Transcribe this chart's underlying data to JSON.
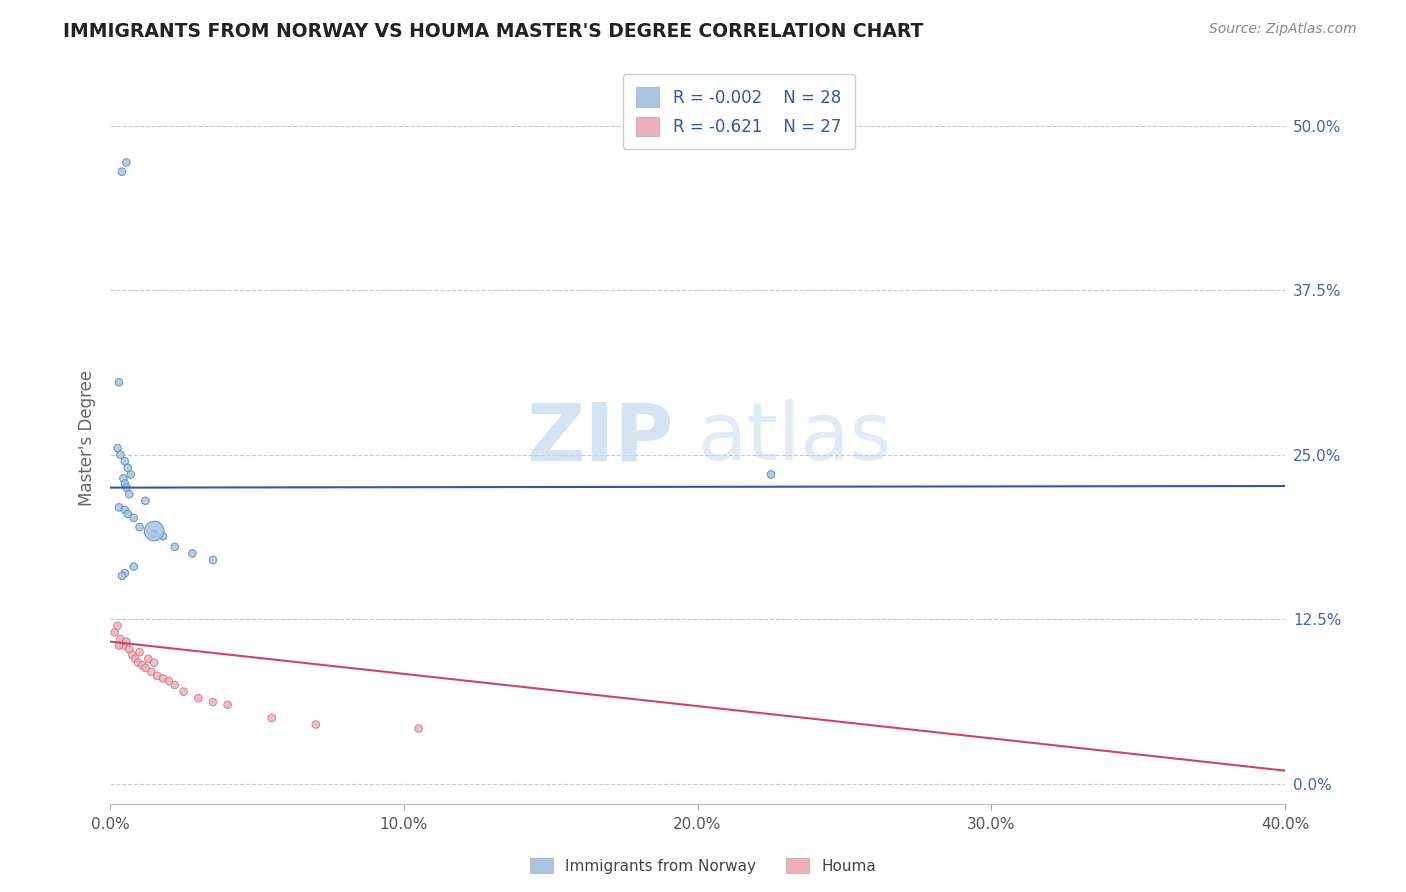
{
  "title": "IMMIGRANTS FROM NORWAY VS HOUMA MASTER'S DEGREE CORRELATION CHART",
  "source_text": "Source: ZipAtlas.com",
  "ylabel": "Master's Degree",
  "xlim": [
    0.0,
    40.0
  ],
  "ylim": [
    -1.5,
    54.0
  ],
  "xticks": [
    0.0,
    10.0,
    20.0,
    30.0,
    40.0
  ],
  "xticklabels": [
    "0.0%",
    "10.0%",
    "20.0%",
    "30.0%",
    "40.0%"
  ],
  "yticks_right": [
    0.0,
    12.5,
    25.0,
    37.5,
    50.0
  ],
  "ytick_right_labels": [
    "0.0%",
    "12.5%",
    "25.0%",
    "37.5%",
    "50.0%"
  ],
  "grid_color": "#c8c8c8",
  "background_color": "#ffffff",
  "blue_color": "#aac4e0",
  "blue_edge_color": "#5588bb",
  "pink_color": "#f0b0bc",
  "pink_edge_color": "#cc7788",
  "blue_line_color": "#3355aa",
  "pink_line_color": "#cc4466",
  "legend_r1": "R = -0.002",
  "legend_n1": "N = 28",
  "legend_r2": "R = -0.621",
  "legend_n2": "N = 27",
  "watermark_zip": "ZIP",
  "watermark_atlas": "atlas",
  "legend_label_blue": "Immigrants from Norway",
  "legend_label_pink": "Houma",
  "blue_scatter_x": [
    0.4,
    0.55,
    0.3,
    0.25,
    0.35,
    0.5,
    0.6,
    0.7,
    0.45,
    0.5,
    0.55,
    0.65,
    1.2,
    0.3,
    0.5,
    0.6,
    0.8,
    1.0,
    1.5,
    1.8,
    2.2,
    2.8,
    3.5,
    1.5,
    0.8,
    0.5,
    0.4,
    22.5
  ],
  "blue_scatter_y": [
    46.5,
    47.2,
    30.5,
    25.5,
    25.0,
    24.5,
    24.0,
    23.5,
    23.2,
    22.8,
    22.5,
    22.0,
    21.5,
    21.0,
    20.8,
    20.5,
    20.2,
    19.5,
    19.0,
    18.8,
    18.0,
    17.5,
    17.0,
    19.2,
    16.5,
    16.0,
    15.8,
    23.5
  ],
  "blue_scatter_sizes": [
    30,
    30,
    30,
    30,
    30,
    30,
    30,
    30,
    30,
    30,
    30,
    30,
    30,
    30,
    30,
    30,
    30,
    30,
    30,
    30,
    30,
    30,
    30,
    200,
    30,
    30,
    30,
    30
  ],
  "pink_scatter_x": [
    0.15,
    0.25,
    0.35,
    0.45,
    0.55,
    0.65,
    0.75,
    0.85,
    0.95,
    1.0,
    1.1,
    1.2,
    1.3,
    1.4,
    1.5,
    1.6,
    1.8,
    2.0,
    2.2,
    2.5,
    3.0,
    3.5,
    4.0,
    5.5,
    7.0,
    10.5,
    0.3
  ],
  "pink_scatter_y": [
    11.5,
    12.0,
    11.0,
    10.5,
    10.8,
    10.2,
    9.8,
    9.5,
    9.2,
    10.0,
    9.0,
    8.8,
    9.5,
    8.5,
    9.2,
    8.2,
    8.0,
    7.8,
    7.5,
    7.0,
    6.5,
    6.2,
    6.0,
    5.0,
    4.5,
    4.2,
    10.5
  ],
  "pink_scatter_sizes": [
    30,
    30,
    30,
    30,
    30,
    30,
    30,
    30,
    30,
    30,
    30,
    30,
    30,
    30,
    30,
    30,
    30,
    30,
    30,
    30,
    30,
    30,
    30,
    30,
    30,
    30,
    30
  ],
  "blue_line_y_intercept": 22.5,
  "blue_line_slope": 0.003,
  "pink_line_x_start": 0.0,
  "pink_line_x_end": 40.0,
  "pink_line_y_start": 10.8,
  "pink_line_y_end": 1.0
}
